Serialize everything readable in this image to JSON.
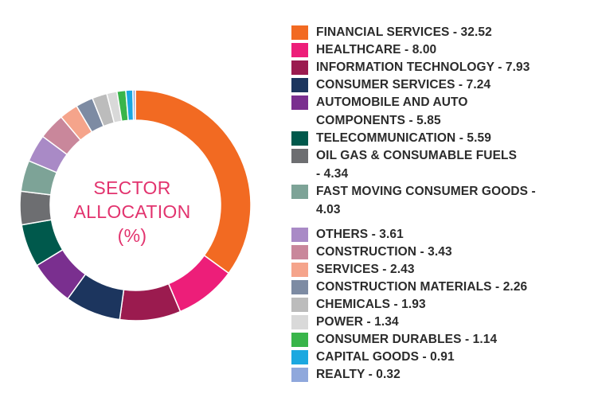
{
  "chart_data": {
    "type": "pie",
    "title": "SECTOR ALLOCATION (%)",
    "title_lines": [
      "SECTOR",
      "ALLOCATION",
      "(%)"
    ],
    "legend_position": "right",
    "slices": [
      {
        "label": "FINANCIAL SERVICES - 32.52",
        "lines": [
          "FINANCIAL SERVICES - 32.52"
        ],
        "value": 32.52,
        "color": "#f26a22"
      },
      {
        "label": "HEALTHCARE - 8.00",
        "lines": [
          "HEALTHCARE - 8.00"
        ],
        "value": 8.0,
        "color": "#ed1e79"
      },
      {
        "label": "INFORMATION TECHNOLOGY - 7.93",
        "lines": [
          "INFORMATION TECHNOLOGY - 7.93"
        ],
        "value": 7.93,
        "color": "#9b1b4f"
      },
      {
        "label": "CONSUMER SERVICES - 7.24",
        "lines": [
          "CONSUMER SERVICES - 7.24"
        ],
        "value": 7.24,
        "color": "#1c355e"
      },
      {
        "label": "AUTOMOBILE AND AUTO COMPONENTS - 5.85",
        "lines": [
          "AUTOMOBILE AND AUTO",
          "COMPONENTS - 5.85"
        ],
        "value": 5.85,
        "color": "#7a2f8f"
      },
      {
        "label": "TELECOMMUNICATION - 5.59",
        "lines": [
          "TELECOMMUNICATION - 5.59"
        ],
        "value": 5.59,
        "color": "#00594c"
      },
      {
        "label": "OIL GAS & CONSUMABLE FUELS - 4.34",
        "lines": [
          "OIL GAS & CONSUMABLE FUELS",
          "- 4.34"
        ],
        "value": 4.34,
        "color": "#6d6e71"
      },
      {
        "label": "FAST MOVING CONSUMER GOODS - 4.03",
        "lines": [
          "FAST MOVING CONSUMER GOODS -",
          "4.03"
        ],
        "value": 4.03,
        "color": "#7da397"
      },
      {
        "label": "OTHERS - 3.61",
        "lines": [
          "OTHERS - 3.61"
        ],
        "value": 3.61,
        "color": "#a98ac6"
      },
      {
        "label": "CONSTRUCTION - 3.43",
        "lines": [
          "CONSTRUCTION - 3.43"
        ],
        "value": 3.43,
        "color": "#c9879b"
      },
      {
        "label": "SERVICES - 2.43",
        "lines": [
          "SERVICES - 2.43"
        ],
        "value": 2.43,
        "color": "#f5a48b"
      },
      {
        "label": "CONSTRUCTION MATERIALS - 2.26",
        "lines": [
          "CONSTRUCTION MATERIALS - 2.26"
        ],
        "value": 2.26,
        "color": "#7d8ba3"
      },
      {
        "label": "CHEMICALS - 1.93",
        "lines": [
          "CHEMICALS - 1.93"
        ],
        "value": 1.93,
        "color": "#bcbcbc"
      },
      {
        "label": "POWER - 1.34",
        "lines": [
          "POWER - 1.34"
        ],
        "value": 1.34,
        "color": "#d9d9d9"
      },
      {
        "label": "CONSUMER DURABLES - 1.14",
        "lines": [
          "CONSUMER DURABLES - 1.14"
        ],
        "value": 1.14,
        "color": "#39b54a"
      },
      {
        "label": "CAPITAL GOODS - 0.91",
        "lines": [
          "CAPITAL GOODS - 0.91"
        ],
        "value": 0.91,
        "color": "#1ba8e0"
      },
      {
        "label": "REALTY - 0.32",
        "lines": [
          "REALTY - 0.32"
        ],
        "value": 0.32,
        "color": "#8fa8dc"
      }
    ]
  }
}
